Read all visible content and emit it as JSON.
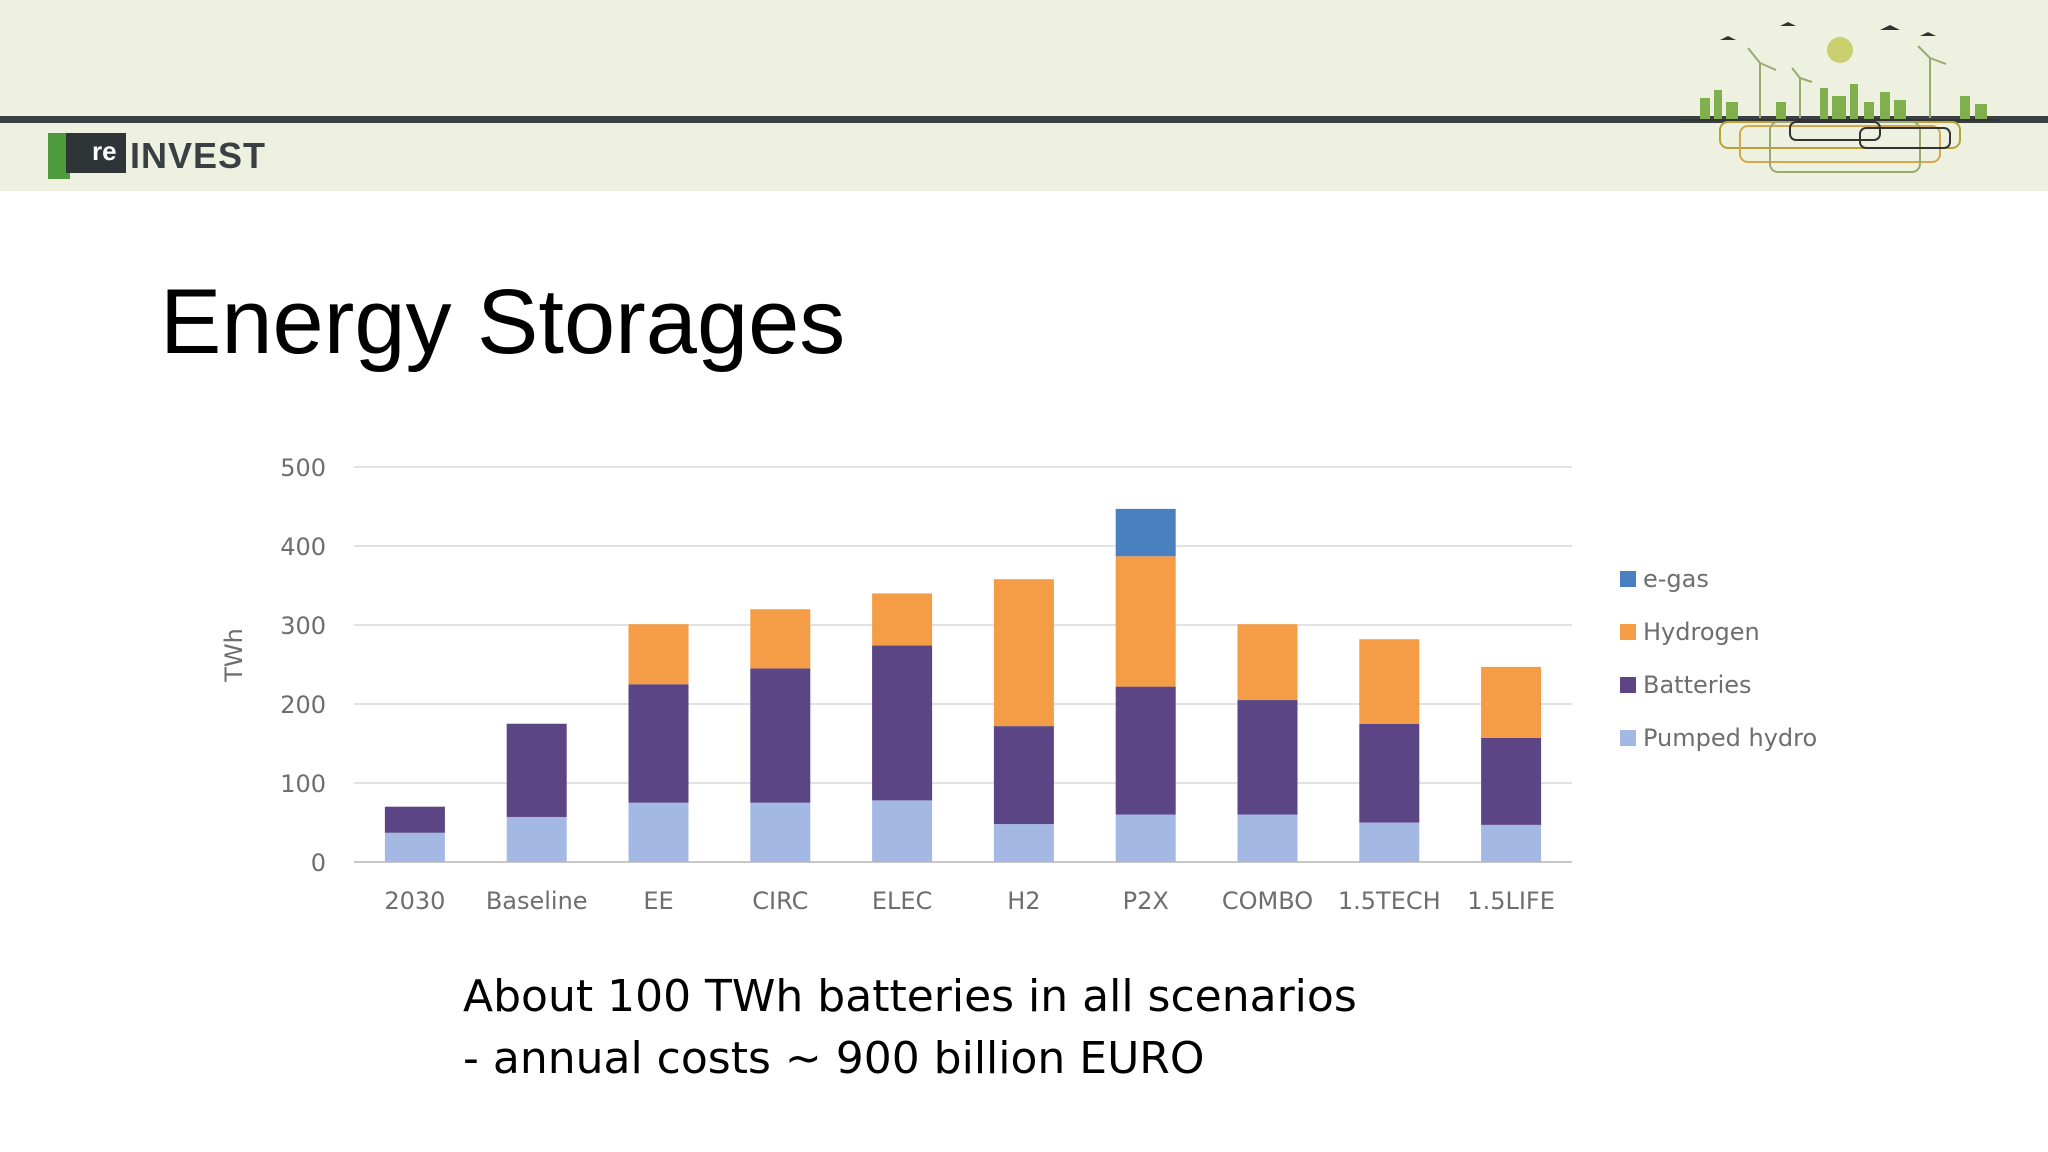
{
  "header": {
    "logo_re": "re",
    "logo_text": "INVEST"
  },
  "slide": {
    "title": "Energy Storages",
    "caption_line1": "About 100 TWh batteries in all scenarios",
    "caption_line2": "- annual costs ~ 900 billion EURO"
  },
  "chart_data": {
    "type": "bar",
    "stacked": true,
    "title": "",
    "xlabel": "",
    "ylabel": "TWh",
    "ylim": [
      0,
      500
    ],
    "yticks": [
      0,
      100,
      200,
      300,
      400,
      500
    ],
    "grid": true,
    "legend_position": "right",
    "categories": [
      "2030",
      "Baseline",
      "EE",
      "CIRC",
      "ELEC",
      "H2",
      "P2X",
      "COMBO",
      "1.5TECH",
      "1.5LIFE"
    ],
    "series": [
      {
        "name": "Pumped hydro",
        "color": "#a4b8e4",
        "values": [
          37,
          57,
          75,
          75,
          78,
          48,
          60,
          60,
          50,
          47
        ]
      },
      {
        "name": "Batteries",
        "color": "#5b4585",
        "values": [
          33,
          118,
          150,
          170,
          196,
          124,
          162,
          145,
          125,
          110
        ]
      },
      {
        "name": "Hydrogen",
        "color": "#f59c46",
        "values": [
          0,
          0,
          76,
          75,
          66,
          186,
          165,
          96,
          107,
          90
        ]
      },
      {
        "name": "e-gas",
        "color": "#4a80bf",
        "values": [
          0,
          0,
          0,
          0,
          0,
          0,
          60,
          0,
          0,
          0
        ]
      }
    ],
    "legend_order": [
      "e-gas",
      "Hydrogen",
      "Batteries",
      "Pumped hydro"
    ]
  }
}
